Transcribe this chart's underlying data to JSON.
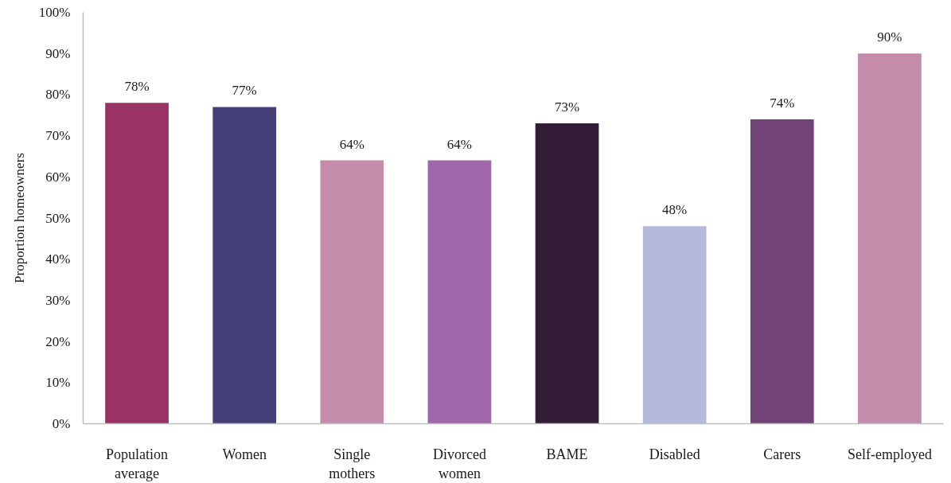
{
  "chart_data": {
    "type": "bar",
    "ylabel": "Proportion homeowners",
    "categories": [
      "Population average",
      "Women",
      "Single mothers",
      "Divorced women",
      "BAME",
      "Disabled",
      "Carers",
      "Self-employed"
    ],
    "values": [
      78,
      77,
      64,
      64,
      73,
      48,
      74,
      90
    ],
    "value_labels": [
      "78%",
      "77%",
      "64%",
      "64%",
      "73%",
      "48%",
      "74%",
      "90%"
    ],
    "colors": [
      "#993366",
      "#453f78",
      "#c48bab",
      "#a066aa",
      "#321c36",
      "#b6b9dc",
      "#714377",
      "#c48bab"
    ],
    "ylim": [
      0,
      100
    ],
    "yticks": [
      {
        "value": 0,
        "label": "0%"
      },
      {
        "value": 10,
        "label": "10%"
      },
      {
        "value": 20,
        "label": "20%"
      },
      {
        "value": 30,
        "label": "30%"
      },
      {
        "value": 40,
        "label": "40%"
      },
      {
        "value": 50,
        "label": "50%"
      },
      {
        "value": 60,
        "label": "60%"
      },
      {
        "value": 70,
        "label": "70%"
      },
      {
        "value": 80,
        "label": "80%"
      },
      {
        "value": 90,
        "label": "90%"
      },
      {
        "value": 100,
        "label": "100%"
      }
    ]
  }
}
